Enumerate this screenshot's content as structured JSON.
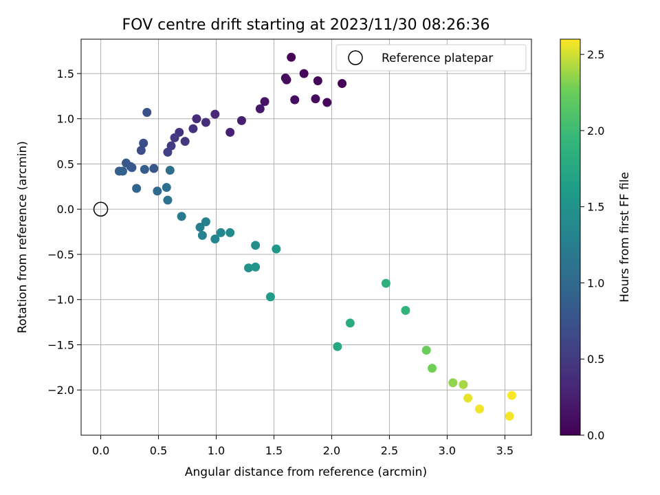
{
  "chart_data": {
    "type": "scatter",
    "title": "FOV centre drift starting at 2023/11/30 08:26:36",
    "xlabel": "Angular distance from reference (arcmin)",
    "ylabel": "Rotation from reference (arcmin)",
    "xlim": [
      -0.17,
      3.73
    ],
    "ylim": [
      -2.5,
      1.88
    ],
    "xticks": [
      0.0,
      0.5,
      1.0,
      1.5,
      2.0,
      2.5,
      3.0,
      3.5
    ],
    "xtick_labels": [
      "0.0",
      "0.5",
      "1.0",
      "1.5",
      "2.0",
      "2.5",
      "3.0",
      "3.5"
    ],
    "yticks": [
      -2.0,
      -1.5,
      -1.0,
      -0.5,
      0.0,
      0.5,
      1.0,
      1.5
    ],
    "ytick_labels": [
      "−2.0",
      "−1.5",
      "−1.0",
      "−0.5",
      "0.0",
      "0.5",
      "1.0",
      "1.5"
    ],
    "grid": true,
    "legend": {
      "placement": "upper-right",
      "entries": [
        "Reference platepar"
      ]
    },
    "reference_point": {
      "x": 0.0,
      "y": 0.0
    },
    "colorbar": {
      "label": "Hours from first FF file",
      "colormap": "viridis",
      "range": [
        0.0,
        2.6
      ],
      "ticks": [
        0.0,
        0.5,
        1.0,
        1.5,
        2.0,
        2.5
      ],
      "tick_labels": [
        "0.0",
        "0.5",
        "1.0",
        "1.5",
        "2.0",
        "2.5"
      ]
    },
    "points": [
      {
        "x": 1.65,
        "y": 1.68,
        "c": 0.03
      },
      {
        "x": 1.6,
        "y": 1.45,
        "c": 0.07
      },
      {
        "x": 1.61,
        "y": 1.43,
        "c": 0.09
      },
      {
        "x": 1.76,
        "y": 1.5,
        "c": 0.05
      },
      {
        "x": 1.88,
        "y": 1.42,
        "c": 0.04
      },
      {
        "x": 2.09,
        "y": 1.39,
        "c": 0.02
      },
      {
        "x": 1.68,
        "y": 1.21,
        "c": 0.1
      },
      {
        "x": 1.86,
        "y": 1.22,
        "c": 0.08
      },
      {
        "x": 1.96,
        "y": 1.18,
        "c": 0.06
      },
      {
        "x": 1.42,
        "y": 1.19,
        "c": 0.16
      },
      {
        "x": 1.38,
        "y": 1.11,
        "c": 0.2
      },
      {
        "x": 1.22,
        "y": 0.98,
        "c": 0.25
      },
      {
        "x": 1.12,
        "y": 0.85,
        "c": 0.28
      },
      {
        "x": 0.99,
        "y": 1.05,
        "c": 0.33
      },
      {
        "x": 0.91,
        "y": 0.96,
        "c": 0.38
      },
      {
        "x": 0.83,
        "y": 1.0,
        "c": 0.36
      },
      {
        "x": 0.8,
        "y": 0.89,
        "c": 0.42
      },
      {
        "x": 0.73,
        "y": 0.75,
        "c": 0.46
      },
      {
        "x": 0.68,
        "y": 0.85,
        "c": 0.44
      },
      {
        "x": 0.64,
        "y": 0.79,
        "c": 0.5
      },
      {
        "x": 0.61,
        "y": 0.7,
        "c": 0.53
      },
      {
        "x": 0.58,
        "y": 0.63,
        "c": 0.55
      },
      {
        "x": 0.4,
        "y": 1.07,
        "c": 0.72
      },
      {
        "x": 0.37,
        "y": 0.73,
        "c": 0.7
      },
      {
        "x": 0.35,
        "y": 0.65,
        "c": 0.68
      },
      {
        "x": 0.22,
        "y": 0.51,
        "c": 0.8
      },
      {
        "x": 0.26,
        "y": 0.47,
        "c": 0.77
      },
      {
        "x": 0.27,
        "y": 0.46,
        "c": 0.82
      },
      {
        "x": 0.46,
        "y": 0.45,
        "c": 0.78
      },
      {
        "x": 0.38,
        "y": 0.44,
        "c": 0.86
      },
      {
        "x": 0.16,
        "y": 0.42,
        "c": 0.88
      },
      {
        "x": 0.19,
        "y": 0.42,
        "c": 0.9
      },
      {
        "x": 0.6,
        "y": 0.43,
        "c": 1.05
      },
      {
        "x": 0.31,
        "y": 0.23,
        "c": 0.94
      },
      {
        "x": 0.49,
        "y": 0.2,
        "c": 1.0
      },
      {
        "x": 0.57,
        "y": 0.24,
        "c": 1.08
      },
      {
        "x": 0.58,
        "y": 0.1,
        "c": 1.1
      },
      {
        "x": 0.7,
        "y": -0.08,
        "c": 1.2
      },
      {
        "x": 0.86,
        "y": -0.2,
        "c": 1.25
      },
      {
        "x": 0.91,
        "y": -0.14,
        "c": 1.28
      },
      {
        "x": 0.88,
        "y": -0.29,
        "c": 1.3
      },
      {
        "x": 0.99,
        "y": -0.33,
        "c": 1.33
      },
      {
        "x": 1.04,
        "y": -0.26,
        "c": 1.36
      },
      {
        "x": 1.12,
        "y": -0.26,
        "c": 1.4
      },
      {
        "x": 1.34,
        "y": -0.4,
        "c": 1.45
      },
      {
        "x": 1.52,
        "y": -0.44,
        "c": 1.55
      },
      {
        "x": 1.28,
        "y": -0.65,
        "c": 1.5
      },
      {
        "x": 1.34,
        "y": -0.64,
        "c": 1.52
      },
      {
        "x": 1.47,
        "y": -0.97,
        "c": 1.6
      },
      {
        "x": 2.47,
        "y": -0.82,
        "c": 1.85
      },
      {
        "x": 2.64,
        "y": -1.12,
        "c": 1.9
      },
      {
        "x": 2.16,
        "y": -1.26,
        "c": 1.8
      },
      {
        "x": 2.05,
        "y": -1.52,
        "c": 1.75
      },
      {
        "x": 2.82,
        "y": -1.56,
        "c": 2.25
      },
      {
        "x": 2.87,
        "y": -1.76,
        "c": 2.28
      },
      {
        "x": 3.05,
        "y": -1.92,
        "c": 2.35
      },
      {
        "x": 3.14,
        "y": -1.94,
        "c": 2.4
      },
      {
        "x": 3.18,
        "y": -2.09,
        "c": 2.55
      },
      {
        "x": 3.28,
        "y": -2.21,
        "c": 2.57
      },
      {
        "x": 3.54,
        "y": -2.29,
        "c": 2.58
      },
      {
        "x": 3.56,
        "y": -2.06,
        "c": 2.59
      }
    ]
  }
}
